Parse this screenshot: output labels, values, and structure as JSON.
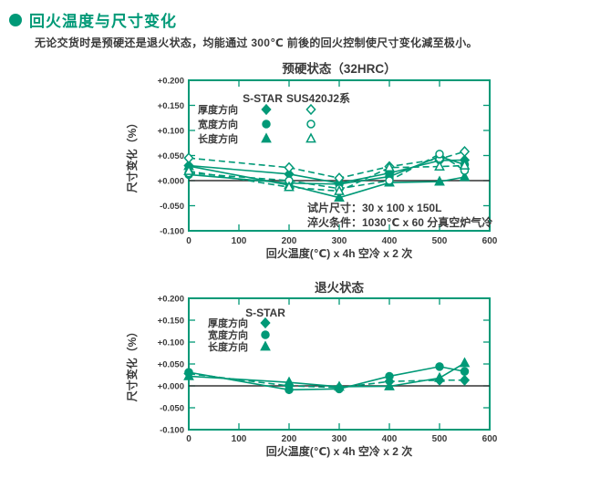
{
  "header": {
    "title": "回火温度与尺寸变化",
    "subtitle": "无论交货时是预硬还是退火状态，均能通过 300℃ 前後的回火控制使尺寸变化減至极小。"
  },
  "colors": {
    "accent": "#009977",
    "text": "#3b3b3b",
    "zero_line": "#333333"
  },
  "chart_data": [
    {
      "type": "line",
      "title": "预硬状态（32HRC）",
      "xlabel": "回火温度(℃) x 4h 空冷 x 2 次",
      "ylabel": "尺寸变化（%）",
      "xlim": [
        0,
        600
      ],
      "ylim": [
        -0.1,
        0.2
      ],
      "xticks": [
        0,
        100,
        200,
        300,
        400,
        500,
        600
      ],
      "ytick_values": [
        0.2,
        0.15,
        0.1,
        0.05,
        0.0,
        -0.05,
        -0.1
      ],
      "ytick_labels": [
        "+0.200",
        "+0.150",
        "+0.100",
        "+0.050",
        "+0.000",
        "-0.050",
        "-0.100"
      ],
      "grid": false,
      "zero_line": true,
      "legend": {
        "position": "top-left-inside",
        "columns": [
          "S-STAR",
          "SUS420J2系"
        ],
        "rows": [
          "厚度方向",
          "宽度方向",
          "长度方向"
        ]
      },
      "x": [
        0,
        200,
        300,
        400,
        500,
        550
      ],
      "series": [
        {
          "name": "S-STAR 厚度方向",
          "group": "S-STAR",
          "direction": "厚度方向",
          "marker": "diamond",
          "marker_fill": "solid",
          "line_style": "solid",
          "values": [
            0.03,
            0.013,
            -0.005,
            0.015,
            0.04,
            0.041
          ]
        },
        {
          "name": "S-STAR 宽度方向",
          "group": "S-STAR",
          "direction": "宽度方向",
          "marker": "circle",
          "marker_fill": "solid",
          "line_style": "solid",
          "values": [
            0.012,
            -0.005,
            -0.007,
            0.008,
            0.048,
            0.032
          ]
        },
        {
          "name": "S-STAR 长度方向",
          "group": "S-STAR",
          "direction": "长度方向",
          "marker": "triangle",
          "marker_fill": "solid",
          "line_style": "solid",
          "values": [
            0.029,
            -0.009,
            -0.034,
            -0.004,
            -0.002,
            0.007
          ]
        },
        {
          "name": "SUS420J2系 厚度方向",
          "group": "SUS420J2系",
          "direction": "厚度方向",
          "marker": "diamond",
          "marker_fill": "open",
          "line_style": "dashed",
          "values": [
            0.045,
            0.026,
            0.005,
            0.028,
            0.043,
            0.058
          ]
        },
        {
          "name": "SUS420J2系 宽度方向",
          "group": "SUS420J2系",
          "direction": "宽度方向",
          "marker": "circle",
          "marker_fill": "open",
          "line_style": "dashed",
          "values": [
            0.015,
            0.0,
            -0.016,
            0.0,
            0.053,
            0.02
          ]
        },
        {
          "name": "SUS420J2系 长度方向",
          "group": "SUS420J2系",
          "direction": "长度方向",
          "marker": "triangle",
          "marker_fill": "open",
          "line_style": "dashed",
          "values": [
            0.019,
            -0.013,
            -0.021,
            0.026,
            0.028,
            0.03
          ]
        }
      ],
      "annotations": [
        "试片尺寸：30 x 100 x 150L",
        "淬火条件：1030℃ x 60 分真空炉气冷"
      ]
    },
    {
      "type": "line",
      "title": "退火状态",
      "xlabel": "回火温度(℃) x 4h 空冷 x 2 次",
      "ylabel": "尺寸变化（%）",
      "xlim": [
        0,
        600
      ],
      "ylim": [
        -0.1,
        0.2
      ],
      "xticks": [
        0,
        100,
        200,
        300,
        400,
        500,
        600
      ],
      "ytick_values": [
        0.2,
        0.15,
        0.1,
        0.05,
        0.0,
        -0.05,
        -0.1
      ],
      "ytick_labels": [
        "+0.200",
        "+0.150",
        "+0.100",
        "+0.050",
        "+0.000",
        "-0.050",
        "-0.100"
      ],
      "grid": false,
      "zero_line": true,
      "legend": {
        "position": "top-left-inside",
        "columns": [
          "S-STAR"
        ],
        "rows": [
          "厚度方向",
          "宽度方向",
          "长度方向"
        ]
      },
      "x": [
        0,
        200,
        300,
        400,
        500,
        550
      ],
      "series": [
        {
          "name": "S-STAR 厚度方向",
          "group": "S-STAR",
          "direction": "厚度方向",
          "marker": "diamond",
          "marker_fill": "solid",
          "line_style": "dashed",
          "values": [
            0.028,
            0.0,
            -0.004,
            0.01,
            0.013,
            0.013
          ]
        },
        {
          "name": "S-STAR 宽度方向",
          "group": "S-STAR",
          "direction": "宽度方向",
          "marker": "circle",
          "marker_fill": "solid",
          "line_style": "solid",
          "values": [
            0.031,
            -0.009,
            -0.007,
            0.022,
            0.044,
            0.033
          ]
        },
        {
          "name": "S-STAR 长度方向",
          "group": "S-STAR",
          "direction": "长度方向",
          "marker": "triangle",
          "marker_fill": "solid",
          "line_style": "solid",
          "values": [
            0.022,
            0.008,
            -0.002,
            -0.001,
            0.018,
            0.052
          ]
        }
      ],
      "annotations": []
    }
  ]
}
